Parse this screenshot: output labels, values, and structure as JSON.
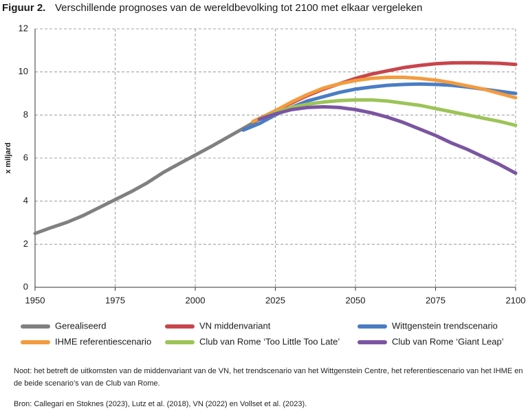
{
  "chart_data": {
    "type": "line",
    "title_label": "Figuur 2.",
    "title": "Verschillende prognoses van de wereldbevolking tot 2100 met elkaar vergeleken",
    "y_label": "x miljard",
    "xlim": [
      1950,
      2100
    ],
    "xticks": [
      1950,
      1975,
      2000,
      2025,
      2050,
      2075,
      2100
    ],
    "ylim": [
      0,
      12
    ],
    "yticks": [
      0,
      2,
      4,
      6,
      8,
      10,
      12
    ],
    "grid": true,
    "series": [
      {
        "name": "Gerealiseerd",
        "color": "#808080",
        "x": [
          1950,
          1955,
          1960,
          1965,
          1970,
          1975,
          1980,
          1985,
          1990,
          1995,
          2000,
          2005,
          2010,
          2015,
          2020
        ],
        "values": [
          2.5,
          2.77,
          3.02,
          3.33,
          3.7,
          4.07,
          4.44,
          4.85,
          5.33,
          5.74,
          6.14,
          6.54,
          6.96,
          7.38,
          7.8
        ]
      },
      {
        "name": "VN middenvariant",
        "color": "#c8454b",
        "x": [
          2020,
          2025,
          2030,
          2035,
          2040,
          2045,
          2050,
          2055,
          2060,
          2065,
          2070,
          2075,
          2080,
          2085,
          2090,
          2095,
          2100
        ],
        "values": [
          7.8,
          8.2,
          8.55,
          8.9,
          9.2,
          9.45,
          9.7,
          9.9,
          10.05,
          10.2,
          10.3,
          10.38,
          10.42,
          10.43,
          10.42,
          10.4,
          10.35
        ]
      },
      {
        "name": "Wittgenstein trendscenario",
        "color": "#4a7dc4",
        "x": [
          2015,
          2020,
          2025,
          2030,
          2035,
          2040,
          2045,
          2050,
          2055,
          2060,
          2065,
          2070,
          2075,
          2080,
          2085,
          2090,
          2095,
          2100
        ],
        "values": [
          7.3,
          7.6,
          8.0,
          8.35,
          8.65,
          8.85,
          9.05,
          9.2,
          9.3,
          9.38,
          9.42,
          9.44,
          9.42,
          9.38,
          9.3,
          9.2,
          9.1,
          9.0
        ]
      },
      {
        "name": "IHME referentiescenario",
        "color": "#f39b3e",
        "x": [
          2018,
          2025,
          2030,
          2035,
          2040,
          2045,
          2050,
          2055,
          2060,
          2065,
          2070,
          2075,
          2080,
          2085,
          2090,
          2095,
          2100
        ],
        "values": [
          7.7,
          8.2,
          8.6,
          8.95,
          9.25,
          9.45,
          9.6,
          9.7,
          9.75,
          9.75,
          9.7,
          9.62,
          9.5,
          9.35,
          9.2,
          9.0,
          8.8
        ]
      },
      {
        "name": "Club van Rome ‘Too Little Too Late’",
        "color": "#9cc457",
        "x": [
          2020,
          2025,
          2030,
          2035,
          2040,
          2045,
          2050,
          2055,
          2060,
          2065,
          2070,
          2075,
          2080,
          2085,
          2090,
          2095,
          2100
        ],
        "values": [
          7.8,
          8.1,
          8.35,
          8.5,
          8.6,
          8.67,
          8.7,
          8.7,
          8.65,
          8.55,
          8.45,
          8.3,
          8.15,
          8.0,
          7.85,
          7.7,
          7.52
        ]
      },
      {
        "name": "Club van Rome ‘Giant Leap’",
        "color": "#7b55a1",
        "x": [
          2020,
          2025,
          2030,
          2035,
          2040,
          2045,
          2050,
          2055,
          2060,
          2065,
          2070,
          2075,
          2080,
          2085,
          2090,
          2095,
          2100
        ],
        "values": [
          7.8,
          8.05,
          8.25,
          8.35,
          8.38,
          8.35,
          8.25,
          8.1,
          7.9,
          7.65,
          7.35,
          7.05,
          6.7,
          6.4,
          6.05,
          5.7,
          5.3
        ]
      }
    ],
    "note": "Noot: het betreft de uitkomsten van de middenvariant van de VN, het trendscenario van het Wittgenstein Centre, het referentiescenario van het IHME en de beide scenario’s van de Club van Rome.",
    "source": "Bron: Callegari en Stoknes (2023), Lutz et al. (2018), VN (2022) en Vollset et al. (2023)."
  }
}
